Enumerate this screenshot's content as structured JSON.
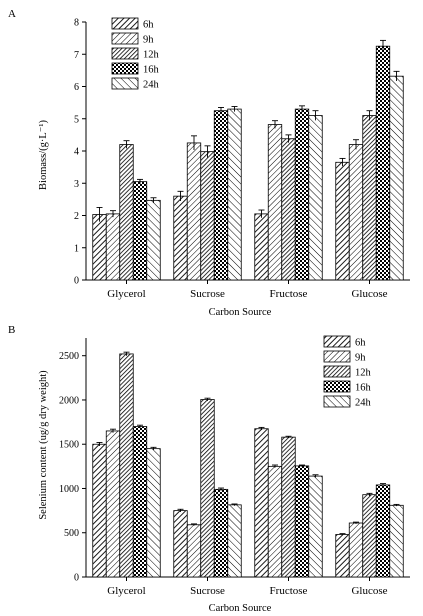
{
  "chart_data": [
    {
      "type": "bar",
      "panel_label": "A",
      "categories": [
        "Glycerol",
        "Sucrose",
        "Fructose",
        "Glucose"
      ],
      "series": [
        {
          "name": "6h",
          "pattern": "diag-fwd",
          "values": [
            2.03,
            2.6,
            2.05,
            3.65
          ],
          "errors": [
            0.22,
            0.15,
            0.12,
            0.12
          ]
        },
        {
          "name": "9h",
          "pattern": "diag-fwd-thin",
          "values": [
            2.05,
            4.25,
            4.82,
            4.2
          ],
          "errors": [
            0.1,
            0.22,
            0.12,
            0.15
          ]
        },
        {
          "name": "12h",
          "pattern": "diag-dense",
          "values": [
            4.2,
            3.98,
            4.38,
            5.1
          ],
          "errors": [
            0.12,
            0.18,
            0.12,
            0.15
          ]
        },
        {
          "name": "16h",
          "pattern": "checker",
          "values": [
            3.05,
            5.25,
            5.3,
            7.25
          ],
          "errors": [
            0.07,
            0.1,
            0.1,
            0.18
          ]
        },
        {
          "name": "24h",
          "pattern": "diag-back",
          "values": [
            2.47,
            5.3,
            5.1,
            6.32
          ],
          "errors": [
            0.08,
            0.08,
            0.15,
            0.15
          ]
        }
      ],
      "xlabel": "Carbon Source",
      "ylabel": "Biomass/(g·L⁻¹)",
      "ylim": [
        0,
        8
      ],
      "yticks": [
        0,
        1,
        2,
        3,
        4,
        5,
        6,
        7,
        8
      ],
      "legend_position": "top-center",
      "grid": false
    },
    {
      "type": "bar",
      "panel_label": "B",
      "categories": [
        "Glycerol",
        "Sucrose",
        "Fructose",
        "Glucose"
      ],
      "series": [
        {
          "name": "6h",
          "pattern": "diag-fwd",
          "values": [
            1500,
            750,
            1675,
            480
          ],
          "errors": [
            20,
            15,
            15,
            10
          ]
        },
        {
          "name": "9h",
          "pattern": "diag-fwd-thin",
          "values": [
            1650,
            590,
            1250,
            610
          ],
          "errors": [
            20,
            10,
            15,
            10
          ]
        },
        {
          "name": "12h",
          "pattern": "diag-dense",
          "values": [
            2520,
            2005,
            1580,
            930
          ],
          "errors": [
            20,
            15,
            10,
            15
          ]
        },
        {
          "name": "16h",
          "pattern": "checker",
          "values": [
            1700,
            990,
            1255,
            1040
          ],
          "errors": [
            15,
            15,
            10,
            15
          ]
        },
        {
          "name": "24h",
          "pattern": "diag-back",
          "values": [
            1450,
            815,
            1140,
            810
          ],
          "errors": [
            15,
            10,
            15,
            10
          ]
        }
      ],
      "xlabel": "Carbon Source",
      "ylabel": "Selenium content (ug/g dry weight)",
      "ylim": [
        0,
        2700
      ],
      "yticks": [
        0,
        500,
        1000,
        1500,
        2000,
        2500
      ],
      "legend_position": "top-right",
      "grid": false
    }
  ]
}
